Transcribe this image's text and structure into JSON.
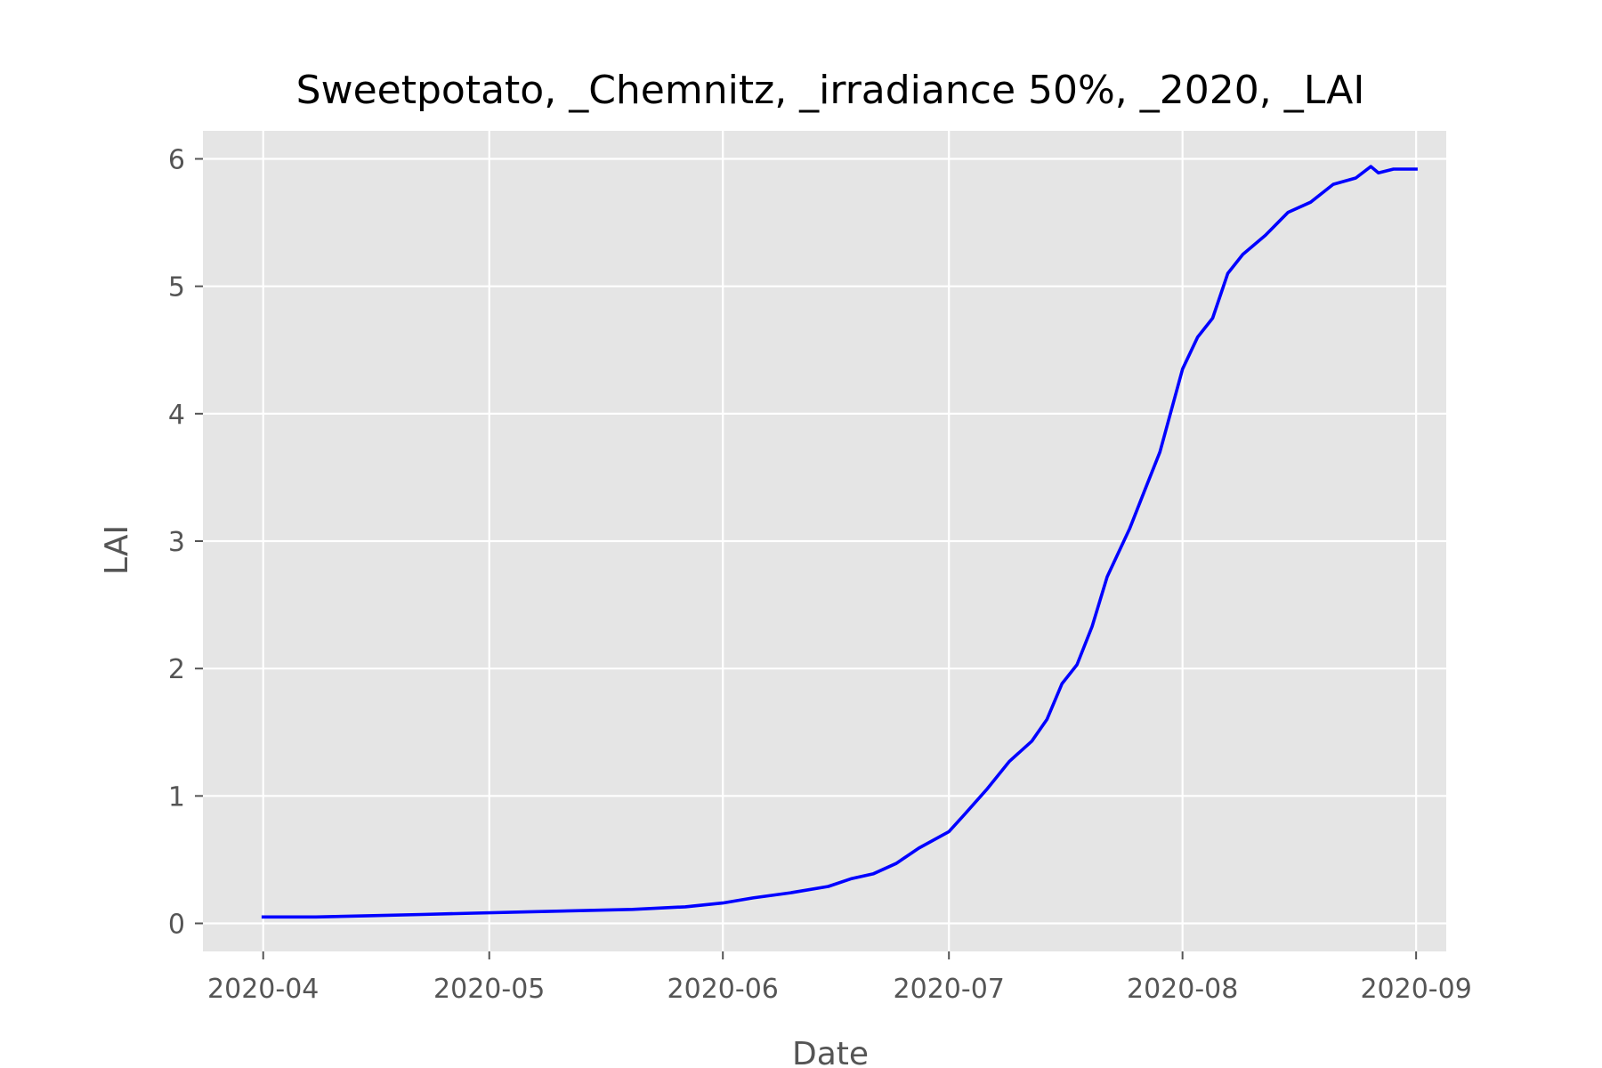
{
  "chart_data": {
    "type": "line",
    "title": "Sweetpotato, _Chemnitz, _irradiance 50%, _2020, _LAI",
    "xlabel": "Date",
    "ylabel": "LAI",
    "x_ticks": [
      "2020-04",
      "2020-05",
      "2020-06",
      "2020-07",
      "2020-08",
      "2020-09"
    ],
    "x_tick_dates": [
      "2020-04-01",
      "2020-05-01",
      "2020-06-01",
      "2020-07-01",
      "2020-08-01",
      "2020-09-01"
    ],
    "y_ticks": [
      "0",
      "1",
      "2",
      "3",
      "4",
      "5",
      "6"
    ],
    "xlim": [
      "2020-03-24",
      "2020-09-05"
    ],
    "ylim": [
      -0.22,
      6.22
    ],
    "grid": true,
    "colors": {
      "line": "#0000ff",
      "plot_background": "#e5e5e5",
      "grid": "#ffffff"
    },
    "series": [
      {
        "x": [
          "2020-04-01",
          "2020-04-08",
          "2020-04-15",
          "2020-04-22",
          "2020-04-29",
          "2020-05-06",
          "2020-05-13",
          "2020-05-20",
          "2020-05-27",
          "2020-06-01",
          "2020-06-05",
          "2020-06-10",
          "2020-06-15",
          "2020-06-18",
          "2020-06-21",
          "2020-06-24",
          "2020-06-27",
          "2020-07-01",
          "2020-07-03",
          "2020-07-06",
          "2020-07-09",
          "2020-07-12",
          "2020-07-14",
          "2020-07-16",
          "2020-07-18",
          "2020-07-20",
          "2020-07-22",
          "2020-07-25",
          "2020-07-27",
          "2020-07-29",
          "2020-08-01",
          "2020-08-03",
          "2020-08-05",
          "2020-08-07",
          "2020-08-09",
          "2020-08-12",
          "2020-08-15",
          "2020-08-18",
          "2020-08-21",
          "2020-08-24",
          "2020-08-26",
          "2020-08-27",
          "2020-08-29",
          "2020-09-01"
        ],
        "values": [
          0.05,
          0.05,
          0.06,
          0.07,
          0.08,
          0.09,
          0.1,
          0.11,
          0.13,
          0.16,
          0.2,
          0.24,
          0.29,
          0.35,
          0.39,
          0.47,
          0.59,
          0.72,
          0.85,
          1.05,
          1.27,
          1.43,
          1.6,
          1.88,
          2.03,
          2.33,
          2.72,
          3.1,
          3.4,
          3.7,
          4.35,
          4.6,
          4.75,
          5.1,
          5.25,
          5.4,
          5.58,
          5.66,
          5.8,
          5.85,
          5.94,
          5.89,
          5.92,
          5.92
        ]
      }
    ]
  }
}
